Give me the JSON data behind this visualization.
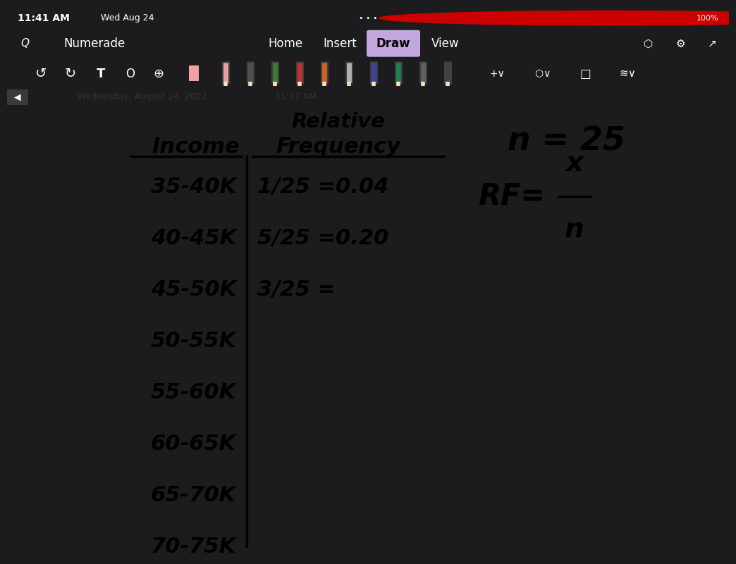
{
  "dark_bg": "#1c1c1e",
  "toolbar_bg": "#2c2c2e",
  "white_bg": "#ffffff",
  "date_bar_bg": "#f0f0f0",
  "top_row": {
    "time": "11:41 AM",
    "date": "Wed Aug 24",
    "dots": "...",
    "battery_text": "100%"
  },
  "nav_tabs": [
    "Home",
    "Insert",
    "Draw",
    "View"
  ],
  "active_tab_color": "#c4a7e0",
  "date_line_text": "Wednesday, August 24, 2022",
  "date_line_time": "11:37 AM",
  "table": {
    "income_header": "Income",
    "freq_header_top": "Relative",
    "freq_header_bot": "Frequency",
    "rows_income": [
      "35-40K",
      "40-45K",
      "45-50K",
      "50-55K",
      "55-60K",
      "60-65K",
      "65-70K",
      "70-75K"
    ],
    "rows_freq": [
      "1/25 =0.04",
      "5/25 =0.20",
      "3/25 =",
      "",
      "",
      "",
      "",
      ""
    ]
  },
  "note_n": "n = 25",
  "note_rf": "RF=",
  "note_x": "x",
  "note_n_frac": "n",
  "pencil_colors": [
    "#e8a0a0",
    "#505050",
    "#3a7a3a",
    "#c03030",
    "#d06020",
    "#b0b0b0",
    "#4040a0",
    "#208050",
    "#606060",
    "#404040"
  ]
}
